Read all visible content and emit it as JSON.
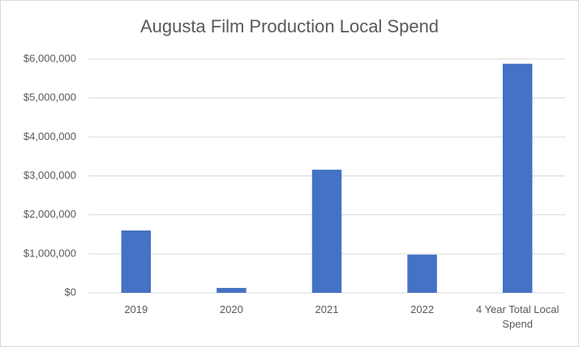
{
  "chart_data": {
    "type": "bar",
    "title": "Augusta Film Production Local Spend",
    "categories": [
      "2019",
      "2020",
      "2021",
      "2022",
      "4 Year Total Local Spend"
    ],
    "values": [
      1600000,
      125000,
      3160000,
      980000,
      5880000
    ],
    "color": "#4472c4",
    "ylim": [
      0,
      6000000
    ],
    "yticks": [
      {
        "value": 0,
        "label": "$0"
      },
      {
        "value": 1000000,
        "label": "$1,000,000"
      },
      {
        "value": 2000000,
        "label": "$2,000,000"
      },
      {
        "value": 3000000,
        "label": "$3,000,000"
      },
      {
        "value": 4000000,
        "label": "$4,000,000"
      },
      {
        "value": 5000000,
        "label": "$5,000,000"
      },
      {
        "value": 6000000,
        "label": "$6,000,000"
      }
    ],
    "grid": true
  }
}
